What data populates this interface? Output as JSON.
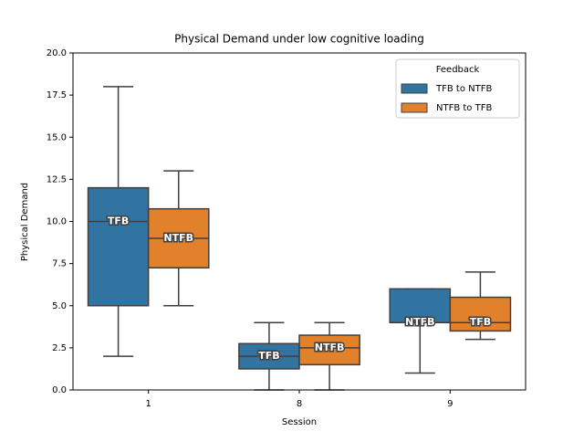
{
  "chart_data": {
    "type": "box",
    "title": "Physical Demand under low cognitive loading",
    "x_label": "Session",
    "y_label": "Physical Demand",
    "categories": [
      "1",
      "8",
      "9"
    ],
    "series": [
      {
        "name": "TFB to NTFB",
        "color": "#3274a1",
        "min": [
          2,
          0,
          1
        ],
        "q1": [
          5,
          1.25,
          4
        ],
        "median": [
          10,
          2,
          4
        ],
        "q3": [
          12,
          2.75,
          6
        ],
        "max": [
          18,
          4,
          6
        ],
        "box_labels": [
          "TFB",
          "TFB",
          "NTFB"
        ]
      },
      {
        "name": "NTFB to TFB",
        "color": "#e1812c",
        "min": [
          5,
          0,
          3
        ],
        "q1": [
          7.25,
          1.5,
          3.5
        ],
        "median": [
          9,
          2.5,
          4
        ],
        "q3": [
          10.75,
          3.25,
          5.5
        ],
        "max": [
          13,
          4,
          7
        ],
        "box_labels": [
          "NTFB",
          "NTFB",
          "TFB"
        ]
      }
    ],
    "ylim": [
      0,
      20
    ],
    "yticks": [
      {
        "value": 0,
        "label": "0.0"
      },
      2.5,
      {
        "value": 5,
        "label": "5.0"
      },
      7.5,
      {
        "value": 10,
        "label": "10.0"
      },
      12.5,
      {
        "value": 15,
        "label": "15.0"
      },
      17.5,
      {
        "value": 20,
        "label": "20.0"
      }
    ],
    "legend_title": "Feedback",
    "legend_position": "upper right",
    "grid": false
  }
}
